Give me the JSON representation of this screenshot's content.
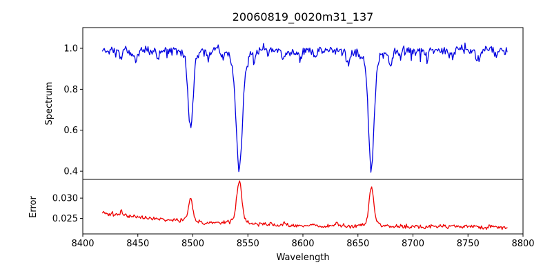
{
  "chart_data": {
    "type": "line",
    "title": "20060819_0020m31_137",
    "xlabel": "Wavelength",
    "grid": false,
    "legend": null,
    "xlim": [
      8400,
      8800
    ],
    "x_data_range": [
      8418,
      8786
    ],
    "x_step": 0.75,
    "frame_color": "#000000",
    "background_color": "#ffffff",
    "xticks": [
      {
        "value": 8400,
        "label": "8400"
      },
      {
        "value": 8450,
        "label": "8450"
      },
      {
        "value": 8500,
        "label": "8500"
      },
      {
        "value": 8550,
        "label": "8550"
      },
      {
        "value": 8600,
        "label": "8600"
      },
      {
        "value": 8650,
        "label": "8650"
      },
      {
        "value": 8700,
        "label": "8700"
      },
      {
        "value": 8750,
        "label": "8750"
      },
      {
        "value": 8800,
        "label": "8800"
      }
    ],
    "panels": [
      {
        "name": "spectrum",
        "ylabel": "Spectrum",
        "color": "#0000e0",
        "ylim": [
          0.36,
          1.101
        ],
        "yticks": [
          {
            "value": 0.4,
            "label": "0.4"
          },
          {
            "value": 0.6,
            "label": "0.6"
          },
          {
            "value": 0.8,
            "label": "0.8"
          },
          {
            "value": 1.0,
            "label": "1.0"
          }
        ],
        "continuum": 0.99,
        "noise_sigma": 0.011,
        "noise_walk": 0.003,
        "spike_prob": 0.07,
        "spike_scale": 0.018,
        "seed": 20060819,
        "absorption_lines": [
          {
            "center": 8498.0,
            "depth": 0.32,
            "sigma": 2.2
          },
          {
            "center": 8498.0,
            "depth": 0.06,
            "sigma": 5.0
          },
          {
            "center": 8542.1,
            "depth": 0.5,
            "sigma": 2.6
          },
          {
            "center": 8542.1,
            "depth": 0.09,
            "sigma": 6.0
          },
          {
            "center": 8662.1,
            "depth": 0.49,
            "sigma": 2.4
          },
          {
            "center": 8662.1,
            "depth": 0.08,
            "sigma": 5.5
          },
          {
            "center": 8434.5,
            "depth": 0.045,
            "sigma": 1.2
          },
          {
            "center": 8448.0,
            "depth": 0.055,
            "sigma": 1.5
          },
          {
            "center": 8468.5,
            "depth": 0.04,
            "sigma": 1.2
          },
          {
            "center": 8514.0,
            "depth": 0.04,
            "sigma": 1.3
          },
          {
            "center": 8527.0,
            "depth": 0.035,
            "sigma": 1.2
          },
          {
            "center": 8556.0,
            "depth": 0.045,
            "sigma": 1.2
          },
          {
            "center": 8582.0,
            "depth": 0.05,
            "sigma": 1.4
          },
          {
            "center": 8598.0,
            "depth": 0.04,
            "sigma": 1.2
          },
          {
            "center": 8611.0,
            "depth": 0.045,
            "sigma": 1.3
          },
          {
            "center": 8641.0,
            "depth": 0.055,
            "sigma": 1.5
          },
          {
            "center": 8679.5,
            "depth": 0.06,
            "sigma": 1.5
          },
          {
            "center": 8688.0,
            "depth": 0.05,
            "sigma": 1.3
          },
          {
            "center": 8713.0,
            "depth": 0.045,
            "sigma": 1.3
          },
          {
            "center": 8736.0,
            "depth": 0.04,
            "sigma": 1.2
          },
          {
            "center": 8758.0,
            "depth": 0.05,
            "sigma": 1.4
          },
          {
            "center": 8776.0,
            "depth": 0.04,
            "sigma": 1.2
          }
        ]
      },
      {
        "name": "error",
        "ylabel": "Error",
        "color": "#ee0000",
        "ylim": [
          0.0212,
          0.0346
        ],
        "yticks": [
          {
            "value": 0.025,
            "label": "0.025"
          },
          {
            "value": 0.03,
            "label": "0.030"
          }
        ],
        "baseline": {
          "floor": 0.02285,
          "amp": 0.0034,
          "efold": 90
        },
        "noise_sigma": 0.00022,
        "noise_walk": 8e-05,
        "seed": 137,
        "peaks": [
          {
            "center": 8435.0,
            "height": 0.0014,
            "sigma": 0.8
          },
          {
            "center": 8498.0,
            "height": 0.005,
            "sigma": 1.8
          },
          {
            "center": 8498.0,
            "height": 0.0007,
            "sigma": 4.0
          },
          {
            "center": 8542.1,
            "height": 0.0093,
            "sigma": 2.2
          },
          {
            "center": 8542.1,
            "height": 0.0013,
            "sigma": 5.0
          },
          {
            "center": 8662.1,
            "height": 0.0086,
            "sigma": 2.0
          },
          {
            "center": 8662.1,
            "height": 0.0012,
            "sigma": 4.5
          },
          {
            "center": 8571.0,
            "height": 0.0005,
            "sigma": 1.2
          },
          {
            "center": 8583.0,
            "height": 0.0007,
            "sigma": 1.5
          },
          {
            "center": 8630.0,
            "height": 0.0005,
            "sigma": 1.5
          }
        ]
      }
    ]
  }
}
